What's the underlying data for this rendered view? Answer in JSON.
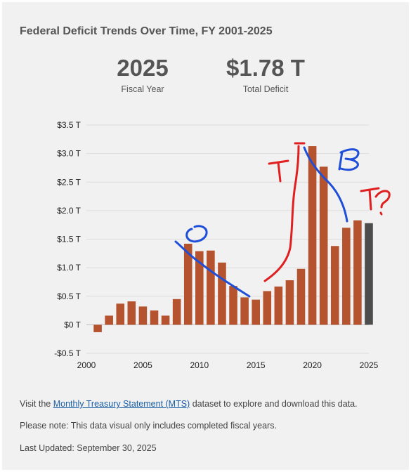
{
  "header": {
    "title": "Federal Deficit Trends Over Time, FY 2001-2025"
  },
  "stats": {
    "fiscal_year_value": "2025",
    "fiscal_year_label": "Fiscal Year",
    "total_deficit_value": "$1.78 T",
    "total_deficit_label": "Total Deficit"
  },
  "annotations": {
    "o_mark": "O",
    "t_mark": "T",
    "b_mark": "B",
    "t_question_mark": "T?"
  },
  "footer": {
    "visit_prefix": "Visit the ",
    "link_text": "Monthly Treasury Statement (MTS)",
    "visit_suffix": " dataset to explore and download this data.",
    "note": "Please note: This data visual only includes completed fiscal years.",
    "updated": "Last Updated: September 30, 2025"
  },
  "colors": {
    "bar": "#b5532e",
    "bar_highlight": "#4d4d4d",
    "annotation_red": "#e02020",
    "annotation_blue": "#1f4fd8"
  },
  "chart_data": {
    "type": "bar",
    "x": [
      2001,
      2002,
      2003,
      2004,
      2005,
      2006,
      2007,
      2008,
      2009,
      2010,
      2011,
      2012,
      2013,
      2014,
      2015,
      2016,
      2017,
      2018,
      2019,
      2020,
      2021,
      2022,
      2023,
      2024,
      2025
    ],
    "values": [
      -0.13,
      0.16,
      0.37,
      0.41,
      0.32,
      0.25,
      0.16,
      0.45,
      1.42,
      1.29,
      1.3,
      1.09,
      0.68,
      0.48,
      0.44,
      0.59,
      0.67,
      0.78,
      0.98,
      3.13,
      2.77,
      1.38,
      1.7,
      1.83,
      1.78
    ],
    "highlight_year": 2025,
    "ylim": [
      -0.5,
      3.5
    ],
    "yticks": [
      -0.5,
      0,
      0.5,
      1.0,
      1.5,
      2.0,
      2.5,
      3.0,
      3.5
    ],
    "ytick_labels": [
      "-$0.5 T",
      "$0 T",
      "$0.5 T",
      "$1.0 T",
      "$1.5 T",
      "$2.0 T",
      "$2.5 T",
      "$3.0 T",
      "$3.5 T"
    ],
    "xlim": [
      2000,
      2025
    ],
    "xticks": [
      2000,
      2005,
      2010,
      2015,
      2020,
      2025
    ],
    "xtick_labels": [
      "2000",
      "2005",
      "2010",
      "2015",
      "2020",
      "2025"
    ],
    "grid": true
  }
}
